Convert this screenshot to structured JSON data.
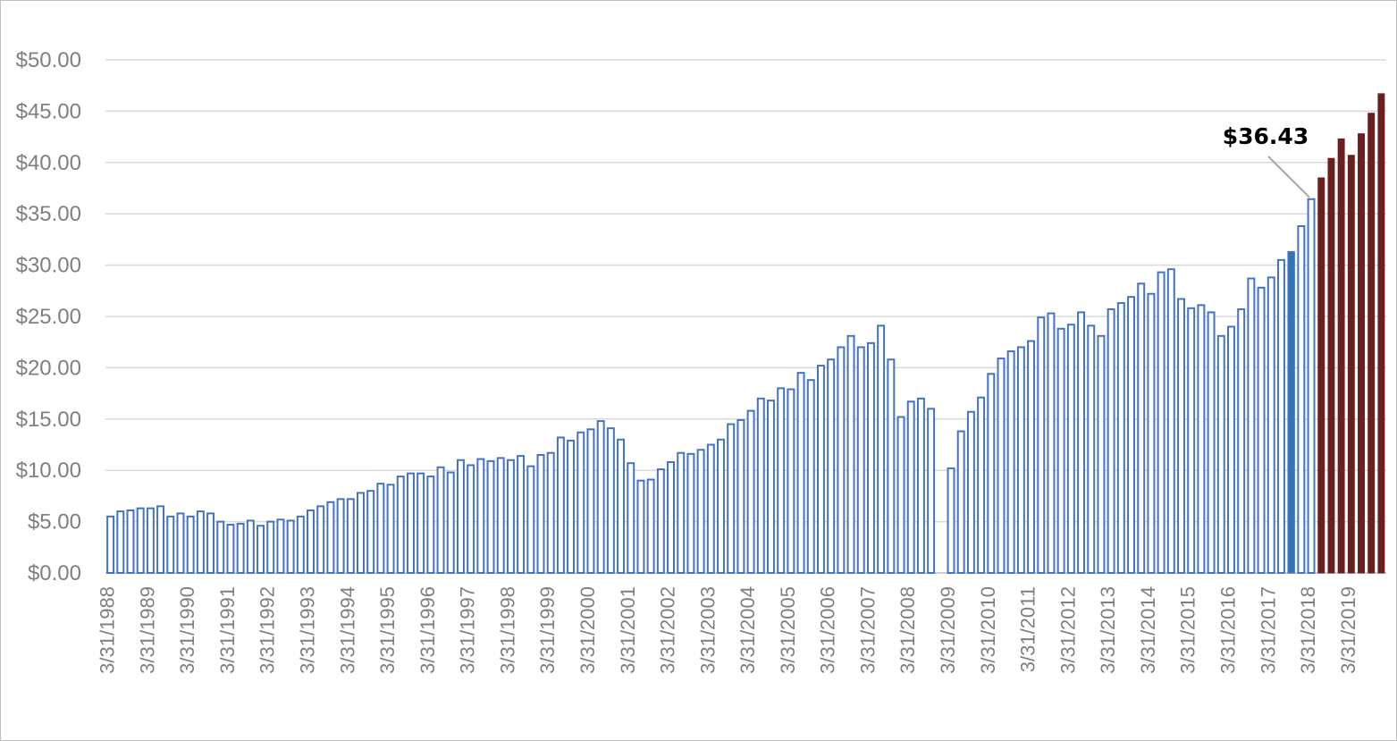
{
  "colors": {
    "historical_fill": "#ffffff",
    "historical_stroke": "#4472c4",
    "highlight_fill": "#2e75b6",
    "forecast_fill": "#6b1f1f",
    "grid": "#d9d9d9",
    "axis_text": "#7f7f7f"
  },
  "chart_data": {
    "type": "bar",
    "title": "",
    "xlabel": "",
    "ylabel": "",
    "ylim": [
      0,
      50
    ],
    "y_ticks": [
      "$0.00",
      "$5.00",
      "$10.00",
      "$15.00",
      "$20.00",
      "$25.00",
      "$30.00",
      "$35.00",
      "$40.00",
      "$45.00",
      "$50.00"
    ],
    "y_tick_values": [
      0,
      5,
      10,
      15,
      20,
      25,
      30,
      35,
      40,
      45,
      50
    ],
    "x_tick_labels": [
      "3/31/1988",
      "3/31/1989",
      "3/31/1990",
      "3/31/1991",
      "3/31/1992",
      "3/31/1993",
      "3/31/1994",
      "3/31/1995",
      "3/31/1996",
      "3/31/1997",
      "3/31/1998",
      "3/31/1999",
      "3/31/2000",
      "3/31/2001",
      "3/31/2002",
      "3/31/2003",
      "3/31/2004",
      "3/31/2005",
      "3/31/2006",
      "3/31/2007",
      "3/31/2008",
      "3/31/2009",
      "3/31/2010",
      "3/31/2011",
      "3/31/2012",
      "3/31/2013",
      "3/31/2014",
      "3/31/2015",
      "3/31/2016",
      "3/31/2017",
      "3/31/2018",
      "3/31/2019"
    ],
    "grid": true,
    "annotation": {
      "text": "$36.43",
      "value": 36.43
    },
    "series": [
      {
        "values": [
          5.5,
          6.0,
          6.1,
          6.3,
          6.3,
          6.5,
          5.5,
          5.8,
          5.5,
          6.0,
          5.8,
          5.0,
          4.7,
          4.8,
          5.1,
          4.6,
          5.0,
          5.2,
          5.1,
          5.5,
          6.1,
          6.5,
          6.9,
          7.2,
          7.2,
          7.8,
          8.0,
          8.7,
          8.6,
          9.4,
          9.7,
          9.7,
          9.4,
          10.3,
          9.8,
          11.0,
          10.5,
          11.1,
          10.9,
          11.2,
          11.0,
          11.4,
          10.4,
          11.5,
          11.7,
          13.2,
          12.9,
          13.7,
          14.0,
          14.8,
          14.1,
          13.0,
          10.7,
          9.0,
          9.1,
          10.1,
          10.8,
          11.7,
          11.6,
          12.0,
          12.5,
          13.0,
          14.5,
          14.9,
          15.8,
          17.0,
          16.8,
          18.0,
          17.9,
          19.5,
          18.8,
          20.2,
          20.8,
          22.0,
          23.1,
          22.0,
          22.4,
          24.1,
          20.8,
          15.2,
          16.7,
          17.0,
          16.0,
          null,
          10.2,
          13.8,
          15.7,
          17.1,
          19.4,
          20.9,
          21.6,
          22.0,
          22.6,
          24.9,
          25.3,
          23.8,
          24.2,
          25.4,
          24.1,
          23.1,
          25.7,
          26.3,
          26.9,
          28.2,
          27.2,
          29.3,
          29.6,
          26.7,
          25.8,
          26.1,
          25.4,
          23.1,
          24.0,
          25.7,
          28.7,
          27.8,
          28.8,
          30.5,
          31.3,
          33.8,
          36.43
        ],
        "highlight_index": 118
      },
      {
        "values": [
          38.5,
          40.4,
          42.3,
          40.7,
          42.8,
          44.8,
          46.7
        ]
      }
    ]
  }
}
